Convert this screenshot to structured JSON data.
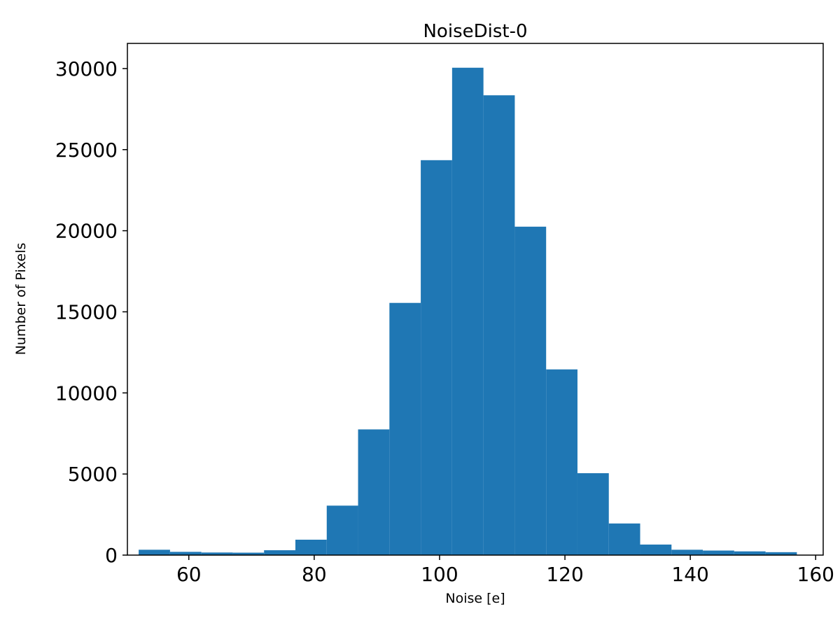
{
  "chart_data": {
    "type": "bar",
    "subtype": "histogram",
    "title": "NoiseDist-0",
    "xlabel": "Noise [e]",
    "ylabel": "Number of Pixels",
    "bar_color": "#1f77b4",
    "axes_color": "#000000",
    "grid": false,
    "legend": null,
    "xlim": [
      50.2,
      161.2
    ],
    "ylim": [
      0,
      31550
    ],
    "xticks": [
      60,
      80,
      100,
      120,
      140,
      160
    ],
    "yticks": [
      0,
      5000,
      10000,
      15000,
      20000,
      25000,
      30000
    ],
    "bin_edges": [
      52,
      57,
      62,
      67,
      72,
      77,
      82,
      87,
      92,
      97,
      102,
      107,
      112,
      117,
      122,
      127,
      132,
      137,
      142,
      147,
      152,
      157
    ],
    "values": [
      330,
      200,
      160,
      150,
      300,
      950,
      3050,
      7750,
      15550,
      24350,
      30050,
      28350,
      20250,
      11450,
      5050,
      1950,
      650,
      330,
      280,
      230,
      180
    ]
  }
}
